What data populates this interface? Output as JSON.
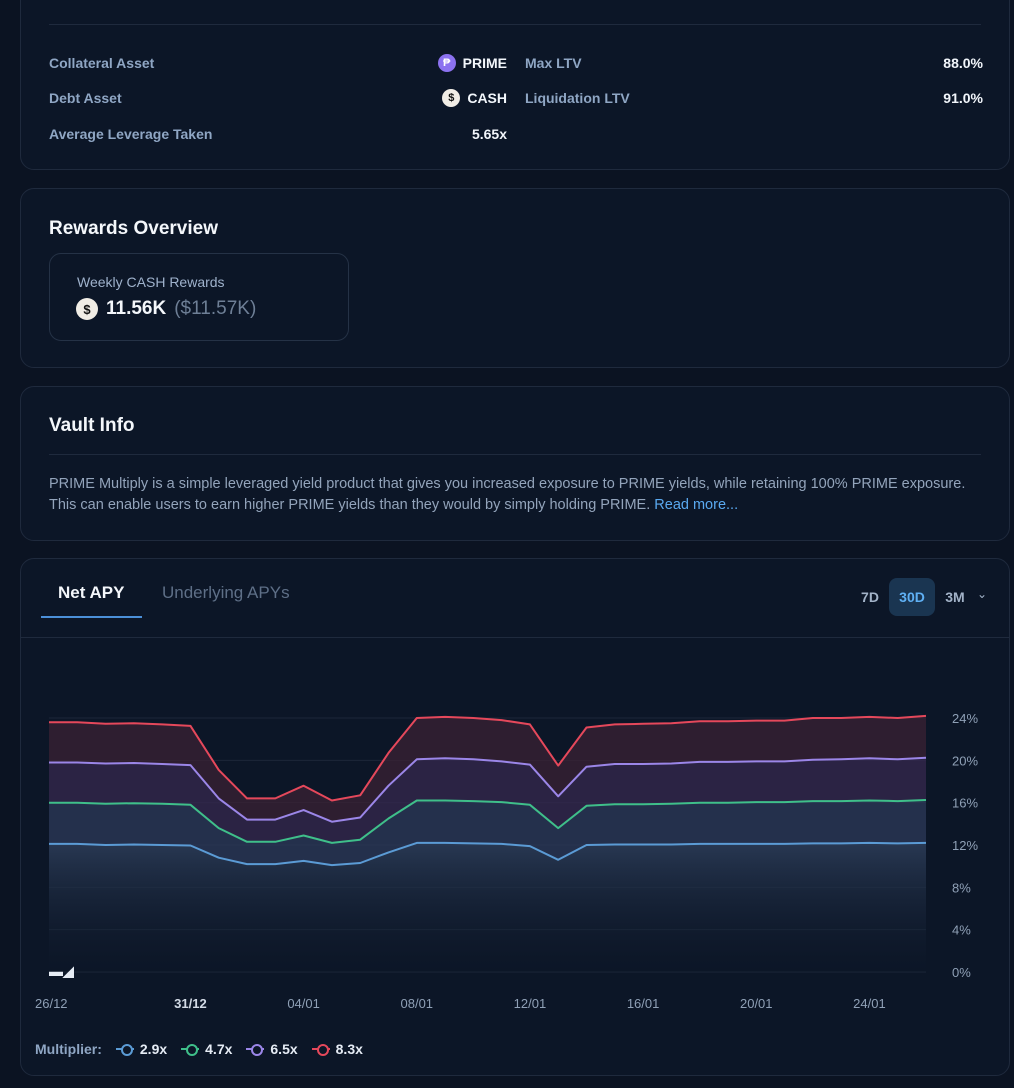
{
  "position": {
    "collateral_label": "Collateral Asset",
    "collateral_value": "PRIME",
    "debt_label": "Debt Asset",
    "debt_value": "CASH",
    "avg_leverage_label": "Average Leverage Taken",
    "avg_leverage_value": "5.65x",
    "max_ltv_label": "Max LTV",
    "max_ltv_value": "88.0%",
    "liq_ltv_label": "Liquidation LTV",
    "liq_ltv_value": "91.0%"
  },
  "rewards": {
    "title": "Rewards Overview",
    "weekly_label": "Weekly CASH Rewards",
    "amount": "11.56K",
    "usd": "($11.57K)"
  },
  "vault": {
    "title": "Vault Info",
    "description": "PRIME Multiply is a simple leveraged yield product that gives you increased exposure to PRIME yields, while retaining 100% PRIME exposure. This can enable users to earn higher PRIME yields than they would by simply holding PRIME.",
    "read_more": "Read more..."
  },
  "chart_panel": {
    "tabs": [
      "Net APY",
      "Underlying APYs"
    ],
    "ranges": [
      "7D",
      "30D",
      "3M"
    ],
    "selected_range": "30D",
    "legend_title": "Multiplier:"
  },
  "colors": {
    "blue": "#5b9bd5",
    "green": "#3fbf8a",
    "purple": "#9b86e8",
    "red": "#e5485b"
  },
  "chart_data": {
    "type": "area",
    "ylim": [
      0,
      24
    ],
    "y_ticks": [
      "0%",
      "4%",
      "8%",
      "12%",
      "16%",
      "20%",
      "24%"
    ],
    "x_ticks": [
      "26/12",
      "31/12",
      "04/01",
      "08/01",
      "12/01",
      "16/01",
      "20/01",
      "24/01"
    ],
    "x_count": 32,
    "series": [
      {
        "name": "2.9x",
        "color": "#5b9bd5",
        "values": [
          12.1,
          12.1,
          12.0,
          12.05,
          12.0,
          11.95,
          10.8,
          10.2,
          10.2,
          10.5,
          10.1,
          10.3,
          11.3,
          12.2,
          12.2,
          12.15,
          12.1,
          11.9,
          10.6,
          12.0,
          12.05,
          12.05,
          12.05,
          12.1,
          12.1,
          12.1,
          12.1,
          12.15,
          12.15,
          12.2,
          12.15,
          12.2
        ]
      },
      {
        "name": "4.7x",
        "color": "#3fbf8a",
        "values": [
          16.0,
          16.0,
          15.9,
          15.95,
          15.9,
          15.8,
          13.6,
          12.3,
          12.3,
          12.9,
          12.2,
          12.5,
          14.5,
          16.2,
          16.2,
          16.15,
          16.05,
          15.8,
          13.6,
          15.7,
          15.85,
          15.85,
          15.9,
          16.0,
          16.0,
          16.05,
          16.05,
          16.15,
          16.15,
          16.2,
          16.15,
          16.25
        ]
      },
      {
        "name": "6.5x",
        "color": "#9b86e8",
        "values": [
          19.8,
          19.8,
          19.7,
          19.75,
          19.65,
          19.55,
          16.4,
          14.4,
          14.4,
          15.3,
          14.2,
          14.6,
          17.6,
          20.1,
          20.2,
          20.1,
          19.9,
          19.6,
          16.6,
          19.4,
          19.65,
          19.65,
          19.7,
          19.85,
          19.85,
          19.9,
          19.9,
          20.05,
          20.1,
          20.2,
          20.1,
          20.25
        ]
      },
      {
        "name": "8.3x",
        "color": "#e5485b",
        "values": [
          23.6,
          23.6,
          23.45,
          23.5,
          23.4,
          23.25,
          19.1,
          16.4,
          16.4,
          17.6,
          16.2,
          16.7,
          20.7,
          24.0,
          24.1,
          24.0,
          23.8,
          23.4,
          19.5,
          23.1,
          23.4,
          23.45,
          23.5,
          23.7,
          23.7,
          23.75,
          23.75,
          24.0,
          24.0,
          24.1,
          24.0,
          24.2
        ]
      }
    ]
  }
}
